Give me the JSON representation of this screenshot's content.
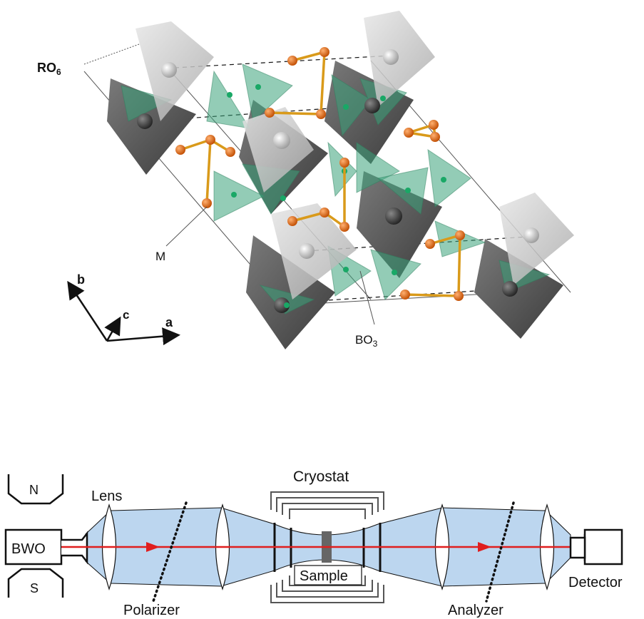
{
  "crystal": {
    "labels": {
      "ro6": "RO",
      "ro6_sub": "6",
      "m": "M",
      "bo3": "BO",
      "bo3_sub": "3"
    },
    "axes": {
      "a": "a",
      "b": "b",
      "c": "c"
    },
    "colors": {
      "dark_tetra": "#555555",
      "light_tetra": "#c8c8c8",
      "triangle": "#3aa37a",
      "m_atom": "#e46a0c",
      "m_bond": "#d99a1a",
      "b_atom": "#19a866"
    }
  },
  "setup": {
    "labels": {
      "n": "N",
      "s": "S",
      "bwo": "BWO",
      "lens": "Lens",
      "polarizer": "Polarizer",
      "cryostat": "Cryostat",
      "sample": "Sample",
      "analyzer": "Analyzer",
      "detector": "Detector"
    },
    "colors": {
      "beam": "#bcd6ef",
      "ray": "#e01e1e"
    }
  }
}
